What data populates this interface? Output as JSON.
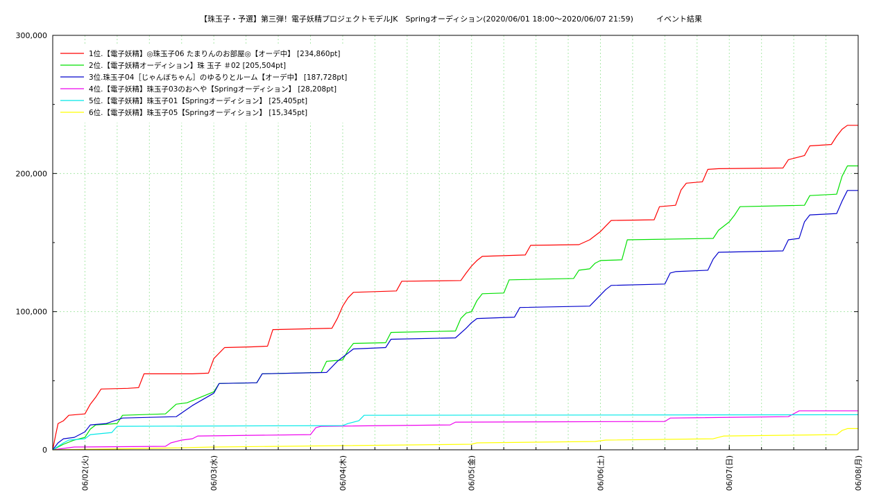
{
  "chart_data": {
    "type": "line",
    "title": "【珠玉子・予選】第三弾！電子妖精プロジェクトモデルJK　Springオーディション(2020/06/01 18:00～2020/06/07 21:59)　　　イベント結果",
    "xlabel": "",
    "ylabel": "",
    "x_range": [
      "2020/06/01 18:00",
      "2020/06/08 00:00"
    ],
    "ylim": [
      0,
      300000
    ],
    "yticks": [
      "0",
      "100,000",
      "200,000",
      "300,000"
    ],
    "xticks": [
      {
        "label": "06/02(火)",
        "x": "2020/06/02 00:00"
      },
      {
        "label": "06/03(水)",
        "x": "2020/06/03 00:00"
      },
      {
        "label": "06/04(木)",
        "x": "2020/06/04 00:00"
      },
      {
        "label": "06/05(金)",
        "x": "2020/06/05 00:00"
      },
      {
        "label": "06/06(土)",
        "x": "2020/06/06 00:00"
      },
      {
        "label": "06/07(日)",
        "x": "2020/06/07 00:00"
      },
      {
        "label": "06/08(月)",
        "x": "2020/06/08 00:00"
      }
    ],
    "grid": true,
    "legend": "top-left",
    "series": [
      {
        "name": "1位.【電子妖精】◎珠玉子06 たまりんのお部屋◎【オーデ中】 [234,860pt]",
        "color": "#ff0000",
        "points": [
          [
            "2020/06/01 18:00",
            0
          ],
          [
            "2020/06/01 18:30",
            10000
          ],
          [
            "2020/06/01 19:00",
            19000
          ],
          [
            "2020/06/01 20:00",
            21000
          ],
          [
            "2020/06/01 21:00",
            25000
          ],
          [
            "2020/06/02 00:00",
            26000
          ],
          [
            "2020/06/02 01:00",
            33000
          ],
          [
            "2020/06/02 02:00",
            38000
          ],
          [
            "2020/06/02 03:00",
            44000
          ],
          [
            "2020/06/02 08:00",
            44500
          ],
          [
            "2020/06/02 10:00",
            45000
          ],
          [
            "2020/06/02 11:00",
            55000
          ],
          [
            "2020/06/02 20:00",
            55000
          ],
          [
            "2020/06/02 23:00",
            55500
          ],
          [
            "2020/06/03 00:00",
            66000
          ],
          [
            "2020/06/03 01:00",
            70000
          ],
          [
            "2020/06/03 02:00",
            74000
          ],
          [
            "2020/06/03 07:00",
            74500
          ],
          [
            "2020/06/03 10:00",
            75000
          ],
          [
            "2020/06/03 11:00",
            87000
          ],
          [
            "2020/06/03 22:00",
            88000
          ],
          [
            "2020/06/03 23:00",
            95000
          ],
          [
            "2020/06/04 00:00",
            104000
          ],
          [
            "2020/06/04 01:00",
            110000
          ],
          [
            "2020/06/04 02:00",
            114000
          ],
          [
            "2020/06/04 10:00",
            115000
          ],
          [
            "2020/06/04 11:00",
            122000
          ],
          [
            "2020/06/04 22:00",
            122500
          ],
          [
            "2020/06/04 23:00",
            128000
          ],
          [
            "2020/06/05 00:00",
            133000
          ],
          [
            "2020/06/05 01:00",
            137000
          ],
          [
            "2020/06/05 02:00",
            140000
          ],
          [
            "2020/06/05 10:00",
            141000
          ],
          [
            "2020/06/05 11:00",
            148000
          ],
          [
            "2020/06/05 20:00",
            148500
          ],
          [
            "2020/06/05 22:00",
            152000
          ],
          [
            "2020/06/06 00:00",
            158000
          ],
          [
            "2020/06/06 01:00",
            162000
          ],
          [
            "2020/06/06 02:00",
            166000
          ],
          [
            "2020/06/06 10:00",
            166500
          ],
          [
            "2020/06/06 11:00",
            176000
          ],
          [
            "2020/06/06 14:00",
            177000
          ],
          [
            "2020/06/06 15:00",
            188000
          ],
          [
            "2020/06/06 16:00",
            193000
          ],
          [
            "2020/06/06 19:00",
            194000
          ],
          [
            "2020/06/06 20:00",
            203000
          ],
          [
            "2020/06/06 22:00",
            203500
          ],
          [
            "2020/06/07 10:00",
            204000
          ],
          [
            "2020/06/07 11:00",
            210000
          ],
          [
            "2020/06/07 14:00",
            213000
          ],
          [
            "2020/06/07 15:00",
            220000
          ],
          [
            "2020/06/07 19:00",
            221000
          ],
          [
            "2020/06/07 20:00",
            227000
          ],
          [
            "2020/06/07 21:00",
            232000
          ],
          [
            "2020/06/07 22:00",
            234860
          ],
          [
            "2020/06/08 00:00",
            234860
          ]
        ]
      },
      {
        "name": "2位.【電子妖精オーディション】珠 玉子 ＃02 [205,504pt]",
        "color": "#00e000",
        "points": [
          [
            "2020/06/01 18:00",
            0
          ],
          [
            "2020/06/01 20:00",
            4000
          ],
          [
            "2020/06/01 22:00",
            7000
          ],
          [
            "2020/06/02 00:00",
            9000
          ],
          [
            "2020/06/02 01:00",
            15000
          ],
          [
            "2020/06/02 02:00",
            18000
          ],
          [
            "2020/06/02 06:00",
            19000
          ],
          [
            "2020/06/02 07:00",
            25000
          ],
          [
            "2020/06/02 15:00",
            26000
          ],
          [
            "2020/06/02 17:00",
            33000
          ],
          [
            "2020/06/02 19:00",
            34000
          ],
          [
            "2020/06/03 00:00",
            42000
          ],
          [
            "2020/06/03 01:00",
            48000
          ],
          [
            "2020/06/03 08:00",
            48500
          ],
          [
            "2020/06/03 09:00",
            55000
          ],
          [
            "2020/06/03 20:00",
            56000
          ],
          [
            "2020/06/03 21:00",
            64000
          ],
          [
            "2020/06/04 00:00",
            65000
          ],
          [
            "2020/06/04 01:00",
            72000
          ],
          [
            "2020/06/04 02:00",
            77000
          ],
          [
            "2020/06/04 08:00",
            77500
          ],
          [
            "2020/06/04 09:00",
            85000
          ],
          [
            "2020/06/04 21:00",
            86000
          ],
          [
            "2020/06/04 22:00",
            95000
          ],
          [
            "2020/06/04 23:00",
            99000
          ],
          [
            "2020/06/05 00:00",
            100000
          ],
          [
            "2020/06/05 01:00",
            108000
          ],
          [
            "2020/06/05 02:00",
            113000
          ],
          [
            "2020/06/05 06:00",
            113500
          ],
          [
            "2020/06/05 07:00",
            123000
          ],
          [
            "2020/06/05 19:00",
            124000
          ],
          [
            "2020/06/05 20:00",
            130000
          ],
          [
            "2020/06/05 22:00",
            131000
          ],
          [
            "2020/06/05 23:00",
            135000
          ],
          [
            "2020/06/06 00:00",
            137000
          ],
          [
            "2020/06/06 04:00",
            137500
          ],
          [
            "2020/06/06 05:00",
            152000
          ],
          [
            "2020/06/06 21:00",
            153000
          ],
          [
            "2020/06/06 22:00",
            159000
          ],
          [
            "2020/06/07 00:00",
            165000
          ],
          [
            "2020/06/07 01:00",
            170000
          ],
          [
            "2020/06/07 02:00",
            176000
          ],
          [
            "2020/06/07 14:00",
            177000
          ],
          [
            "2020/06/07 15:00",
            184000
          ],
          [
            "2020/06/07 20:00",
            185000
          ],
          [
            "2020/06/07 21:00",
            198000
          ],
          [
            "2020/06/07 22:00",
            205504
          ],
          [
            "2020/06/08 00:00",
            205504
          ]
        ]
      },
      {
        "name": "3位.珠玉子04［じゃんぼちゃん］のゆるりとルーム【オーデ中】 [187,728pt]",
        "color": "#0000cc",
        "points": [
          [
            "2020/06/01 18:00",
            0
          ],
          [
            "2020/06/01 19:00",
            5000
          ],
          [
            "2020/06/01 20:00",
            8000
          ],
          [
            "2020/06/01 22:00",
            9000
          ],
          [
            "2020/06/02 00:00",
            13000
          ],
          [
            "2020/06/02 01:00",
            18000
          ],
          [
            "2020/06/02 04:00",
            19000
          ],
          [
            "2020/06/02 07:00",
            23000
          ],
          [
            "2020/06/02 17:00",
            24000
          ],
          [
            "2020/06/02 20:00",
            32000
          ],
          [
            "2020/06/03 00:00",
            41000
          ],
          [
            "2020/06/03 01:00",
            48000
          ],
          [
            "2020/06/03 08:00",
            48500
          ],
          [
            "2020/06/03 09:00",
            55000
          ],
          [
            "2020/06/03 21:00",
            56000
          ],
          [
            "2020/06/03 23:00",
            64000
          ],
          [
            "2020/06/04 01:00",
            70000
          ],
          [
            "2020/06/04 02:00",
            73000
          ],
          [
            "2020/06/04 08:00",
            74000
          ],
          [
            "2020/06/04 09:00",
            80000
          ],
          [
            "2020/06/04 21:00",
            81000
          ],
          [
            "2020/06/04 23:00",
            88000
          ],
          [
            "2020/06/05 00:00",
            92000
          ],
          [
            "2020/06/05 01:00",
            95000
          ],
          [
            "2020/06/05 08:00",
            96000
          ],
          [
            "2020/06/05 09:00",
            103000
          ],
          [
            "2020/06/05 22:00",
            104000
          ],
          [
            "2020/06/06 00:00",
            112000
          ],
          [
            "2020/06/06 01:00",
            116000
          ],
          [
            "2020/06/06 02:00",
            119000
          ],
          [
            "2020/06/06 12:00",
            120000
          ],
          [
            "2020/06/06 13:00",
            128000
          ],
          [
            "2020/06/06 14:00",
            129000
          ],
          [
            "2020/06/06 20:00",
            130000
          ],
          [
            "2020/06/06 21:00",
            138000
          ],
          [
            "2020/06/06 22:00",
            143000
          ],
          [
            "2020/06/07 10:00",
            144000
          ],
          [
            "2020/06/07 11:00",
            152000
          ],
          [
            "2020/06/07 13:00",
            153000
          ],
          [
            "2020/06/07 14:00",
            165000
          ],
          [
            "2020/06/07 15:00",
            170000
          ],
          [
            "2020/06/07 20:00",
            171000
          ],
          [
            "2020/06/07 21:00",
            180000
          ],
          [
            "2020/06/07 22:00",
            187728
          ],
          [
            "2020/06/08 00:00",
            187728
          ]
        ]
      },
      {
        "name": "4位.【電子妖精】珠玉子03のおへや【Springオーディション】 [28,208pt]",
        "color": "#ee00ee",
        "points": [
          [
            "2020/06/01 18:00",
            0
          ],
          [
            "2020/06/01 22:00",
            2000
          ],
          [
            "2020/06/02 15:00",
            2500
          ],
          [
            "2020/06/02 16:00",
            5000
          ],
          [
            "2020/06/02 18:00",
            7000
          ],
          [
            "2020/06/02 20:00",
            8000
          ],
          [
            "2020/06/02 21:00",
            10000
          ],
          [
            "2020/06/03 18:00",
            11000
          ],
          [
            "2020/06/03 19:00",
            16000
          ],
          [
            "2020/06/03 20:00",
            17000
          ],
          [
            "2020/06/04 20:00",
            18000
          ],
          [
            "2020/06/04 21:00",
            20000
          ],
          [
            "2020/06/06 12:00",
            20500
          ],
          [
            "2020/06/06 13:00",
            23000
          ],
          [
            "2020/06/07 11:00",
            24000
          ],
          [
            "2020/06/07 13:00",
            28208
          ],
          [
            "2020/06/08 00:00",
            28208
          ]
        ]
      },
      {
        "name": "5位.【電子妖精】珠玉子01【Springオーディション】 [25,405pt]",
        "color": "#00e8e8",
        "points": [
          [
            "2020/06/01 18:00",
            0
          ],
          [
            "2020/06/01 20:00",
            5000
          ],
          [
            "2020/06/01 21:00",
            7000
          ],
          [
            "2020/06/02 00:00",
            8000
          ],
          [
            "2020/06/02 01:00",
            11000
          ],
          [
            "2020/06/02 05:00",
            12500
          ],
          [
            "2020/06/02 06:00",
            17000
          ],
          [
            "2020/06/04 00:00",
            17500
          ],
          [
            "2020/06/04 01:00",
            19000
          ],
          [
            "2020/06/04 03:00",
            21000
          ],
          [
            "2020/06/04 04:00",
            25000
          ],
          [
            "2020/06/08 00:00",
            25405
          ]
        ]
      },
      {
        "name": "6位.【電子妖精】珠玉子05【Springオーディション】 [15,345pt]",
        "color": "#ffff00",
        "points": [
          [
            "2020/06/01 18:00",
            0
          ],
          [
            "2020/06/02 12:00",
            1000
          ],
          [
            "2020/06/03 00:00",
            2000
          ],
          [
            "2020/06/04 00:00",
            3000
          ],
          [
            "2020/06/05 00:00",
            4000
          ],
          [
            "2020/06/05 01:00",
            5000
          ],
          [
            "2020/06/05 23:00",
            6000
          ],
          [
            "2020/06/06 01:00",
            7000
          ],
          [
            "2020/06/06 21:00",
            8000
          ],
          [
            "2020/06/06 23:00",
            10000
          ],
          [
            "2020/06/07 20:00",
            11000
          ],
          [
            "2020/06/07 21:00",
            14000
          ],
          [
            "2020/06/07 22:00",
            15345
          ],
          [
            "2020/06/08 00:00",
            15345
          ]
        ]
      }
    ]
  }
}
